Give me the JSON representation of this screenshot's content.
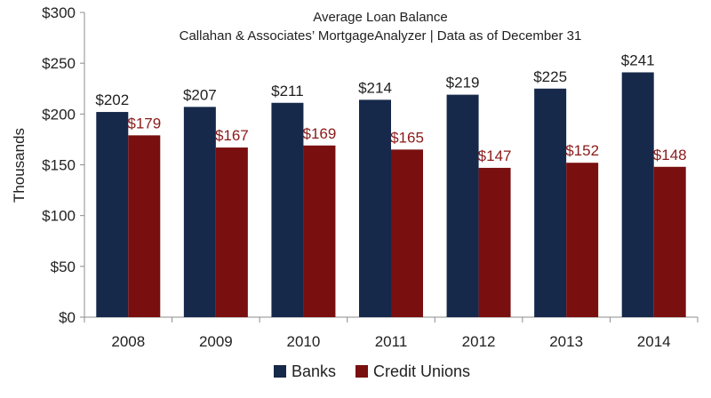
{
  "chart_data": {
    "type": "bar",
    "title": "Average Loan Balance",
    "subtitle": "Callahan & Associates’ MortgageAnalyzer  |  Data as of December 31",
    "xlabel": "",
    "ylabel": "Thousands",
    "categories": [
      "2008",
      "2009",
      "2010",
      "2011",
      "2012",
      "2013",
      "2014"
    ],
    "series": [
      {
        "name": "Banks",
        "color": "#16294a",
        "label_color": "#1f1f1f",
        "values": [
          202,
          207,
          211,
          214,
          219,
          225,
          241
        ],
        "labels": [
          "$202",
          "$207",
          "$211",
          "$214",
          "$219",
          "$225",
          "$241"
        ]
      },
      {
        "name": "Credit Unions",
        "color": "#7a0f0f",
        "label_color": "#8b1a1a",
        "values": [
          179,
          167,
          169,
          165,
          147,
          152,
          148
        ],
        "labels": [
          "$179",
          "$167",
          "$169",
          "$165",
          "$147",
          "$152",
          "$148"
        ]
      }
    ],
    "ylim": [
      0,
      300
    ],
    "yticks": [
      0,
      50,
      100,
      150,
      200,
      250,
      300
    ],
    "ytick_labels": [
      "$0",
      "$50",
      "$100",
      "$150",
      "$200",
      "$250",
      "$300"
    ],
    "grid": false,
    "legend_position": "bottom"
  }
}
